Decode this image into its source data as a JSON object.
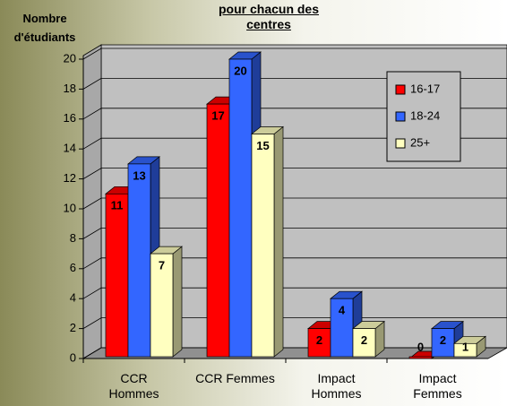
{
  "chart_data": {
    "type": "bar3d",
    "title": "pour chacun des centres",
    "y_label": "Nombre d'étudiants",
    "categories": [
      "CCR Hommes",
      "CCR Femmes",
      "Impact Hommes",
      "Impact Femmes"
    ],
    "series": [
      {
        "name": "16-17",
        "color": "#ff0000",
        "values": [
          11,
          17,
          2,
          0
        ]
      },
      {
        "name": "18-24",
        "color": "#3366ff",
        "values": [
          13,
          20,
          4,
          2
        ]
      },
      {
        "name": "25+",
        "color": "#ffffc0",
        "values": [
          7,
          15,
          2,
          1
        ]
      }
    ],
    "ylim": [
      0,
      20
    ],
    "yticks": [
      0,
      2,
      4,
      6,
      8,
      10,
      12,
      14,
      16,
      18,
      20
    ],
    "grid": true,
    "legend": "upper right"
  }
}
